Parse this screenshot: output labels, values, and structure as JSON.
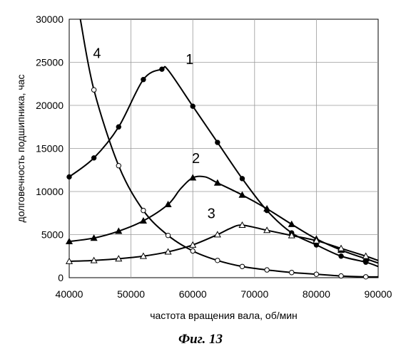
{
  "chart_data": {
    "type": "line",
    "xlabel": "частота вращения вала, об/мин",
    "ylabel": "долговечность подшипника, час",
    "xlim": [
      40000,
      90000
    ],
    "ylim": [
      0,
      30000
    ],
    "x_ticks": [
      "40000",
      "50000",
      "60000",
      "70000",
      "80000",
      "90000"
    ],
    "y_ticks": [
      "0",
      "5000",
      "10000",
      "15000",
      "20000",
      "25000",
      "30000"
    ],
    "grid": true,
    "series": [
      {
        "name": "1",
        "marker": "filled-circle",
        "x": [
          40000,
          44000,
          48000,
          52000,
          55000,
          56000,
          60000,
          64000,
          68000,
          72000,
          76000,
          80000,
          84000,
          88000,
          90000
        ],
        "y": [
          11700,
          13900,
          17500,
          23000,
          24200,
          24100,
          19900,
          15700,
          11500,
          7800,
          5200,
          3800,
          2500,
          1800,
          1300
        ],
        "marked": [
          true,
          true,
          true,
          true,
          true,
          false,
          true,
          true,
          true,
          true,
          true,
          true,
          true,
          true,
          false
        ]
      },
      {
        "name": "2",
        "marker": "filled-triangle",
        "x": [
          40000,
          44000,
          48000,
          52000,
          56000,
          58000,
          60000,
          62000,
          64000,
          68000,
          72000,
          76000,
          80000,
          84000,
          88000,
          90000
        ],
        "y": [
          4200,
          4600,
          5400,
          6600,
          8500,
          10300,
          11600,
          11700,
          11000,
          9600,
          8000,
          6200,
          4500,
          3200,
          2200,
          1700
        ],
        "marked": [
          true,
          true,
          true,
          true,
          true,
          false,
          true,
          false,
          true,
          true,
          true,
          true,
          true,
          true,
          true,
          false
        ]
      },
      {
        "name": "3",
        "marker": "open-triangle",
        "x": [
          40000,
          44000,
          48000,
          52000,
          56000,
          60000,
          64000,
          66000,
          68000,
          72000,
          76000,
          80000,
          84000,
          88000,
          90000
        ],
        "y": [
          1900,
          2000,
          2200,
          2500,
          3000,
          3800,
          5000,
          5700,
          6100,
          5500,
          4900,
          4300,
          3400,
          2500,
          2000
        ],
        "marked": [
          true,
          true,
          true,
          true,
          true,
          true,
          true,
          false,
          true,
          true,
          true,
          true,
          true,
          true,
          false
        ]
      },
      {
        "name": "4",
        "marker": "open-circle",
        "x": [
          41800,
          44000,
          48000,
          52000,
          56000,
          60000,
          64000,
          68000,
          72000,
          76000,
          80000,
          84000,
          88000,
          90000
        ],
        "y": [
          30000,
          21800,
          13000,
          7800,
          4900,
          3100,
          2000,
          1300,
          900,
          600,
          400,
          200,
          100,
          100
        ],
        "marked": [
          false,
          true,
          true,
          true,
          true,
          true,
          true,
          true,
          true,
          true,
          true,
          true,
          true,
          false
        ]
      }
    ],
    "curve_labels": [
      {
        "text": "1",
        "x": 59500,
        "y": 24800
      },
      {
        "text": "2",
        "x": 60500,
        "y": 13300
      },
      {
        "text": "3",
        "x": 63000,
        "y": 6900
      },
      {
        "text": "4",
        "x": 44500,
        "y": 25500
      }
    ]
  },
  "caption": "Фиг. 13"
}
